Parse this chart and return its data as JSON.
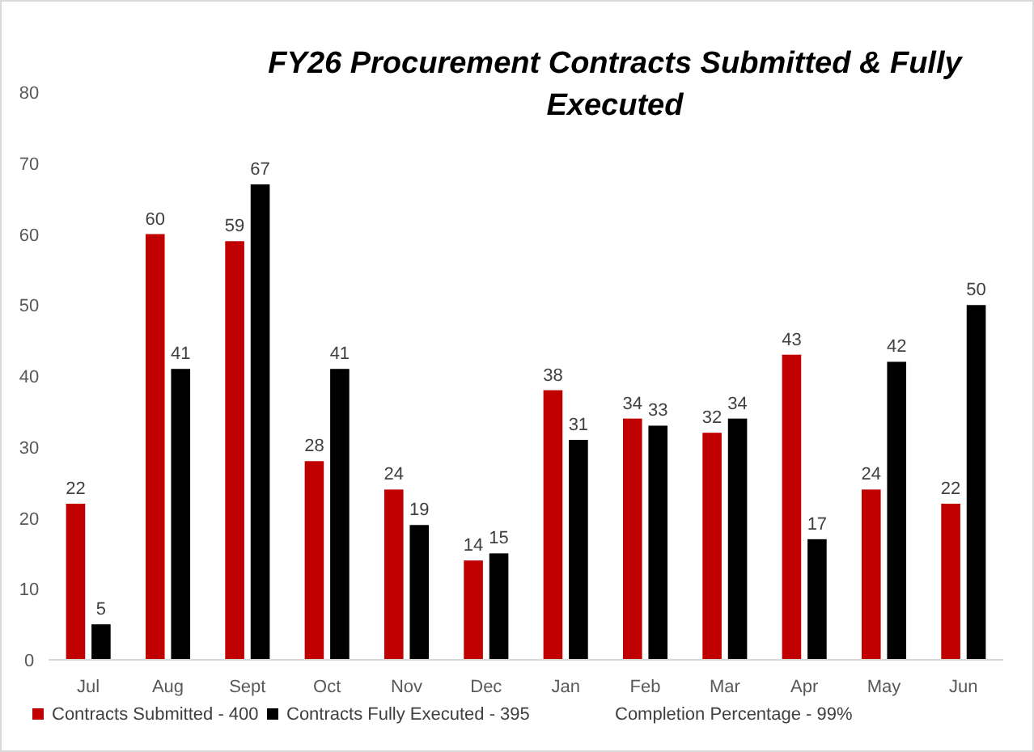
{
  "chart_data": {
    "type": "bar",
    "title": "FY26 Procurement Contracts Submitted & Fully Executed",
    "categories": [
      "Jul",
      "Aug",
      "Sept",
      "Oct",
      "Nov",
      "Dec",
      "Jan",
      "Feb",
      "Mar",
      "Apr",
      "May",
      "Jun"
    ],
    "series": [
      {
        "name": "Contracts Submitted - 400",
        "color": "#c00000",
        "values": [
          22,
          60,
          59,
          28,
          24,
          14,
          38,
          34,
          32,
          43,
          24,
          22
        ]
      },
      {
        "name": "Contracts Fully Executed - 395",
        "color": "#000000",
        "values": [
          5,
          41,
          67,
          41,
          19,
          15,
          31,
          33,
          34,
          17,
          42,
          50
        ]
      }
    ],
    "ylim": [
      0,
      80
    ],
    "yticks": [
      0,
      10,
      20,
      30,
      40,
      50,
      60,
      70,
      80
    ],
    "grid": false,
    "legend": "bottom",
    "data_labels": true,
    "annotations": [
      "Completion Percentage - 99%"
    ]
  }
}
